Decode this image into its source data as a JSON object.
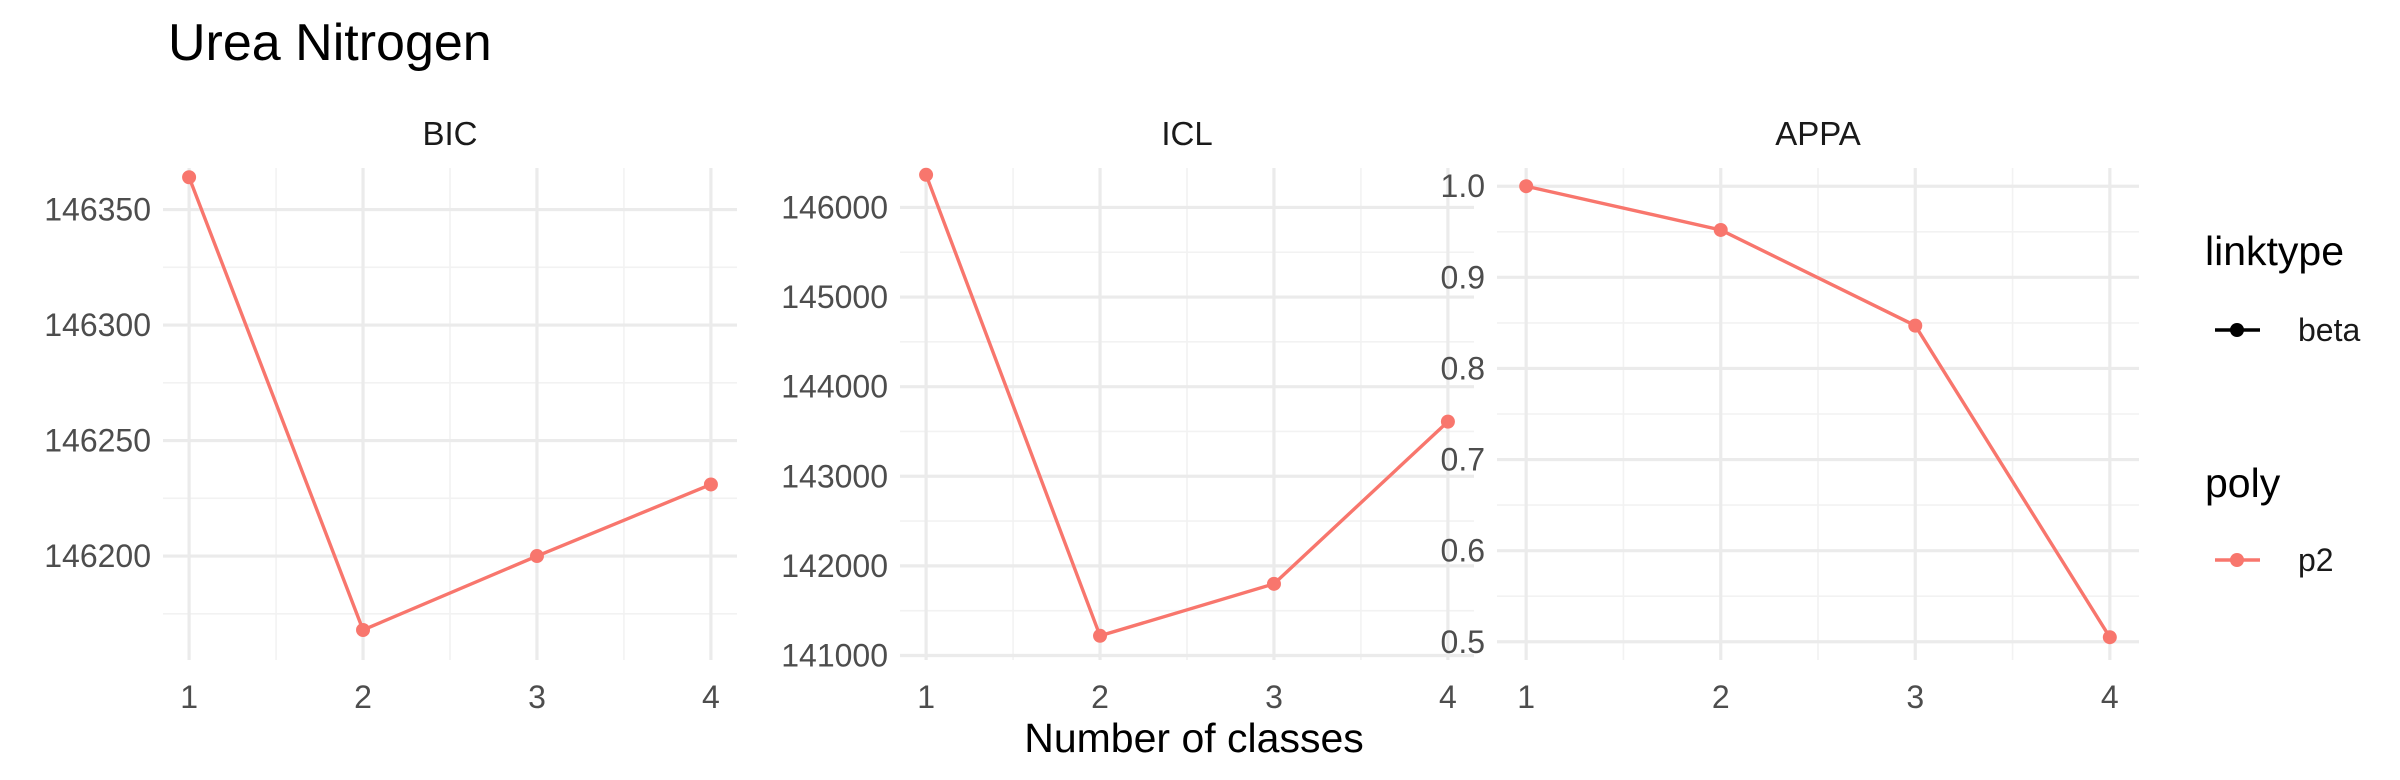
{
  "chart_data": {
    "type": "line",
    "title": "Urea Nitrogen",
    "xlabel": "Number of classes",
    "ylabel": "",
    "x": [
      1,
      2,
      3,
      4
    ],
    "xticks": [
      "1",
      "2",
      "3",
      "4"
    ],
    "grid": true,
    "legend_position": "right",
    "legends": [
      {
        "title": "linktype",
        "entries": [
          {
            "label": "beta",
            "color": "#000000"
          }
        ]
      },
      {
        "title": "poly",
        "entries": [
          {
            "label": "p2",
            "color": "#F8766D"
          }
        ]
      }
    ],
    "panels": [
      {
        "name": "BIC",
        "ylim": [
          146155,
          146368
        ],
        "yticks": [
          146200,
          146250,
          146300,
          146350
        ],
        "ytick_labels": [
          "146200",
          "146250",
          "146300",
          "146350"
        ],
        "series": [
          {
            "name": "p2",
            "color": "#F8766D",
            "values": [
              146364,
              146168,
              146200,
              146231
            ]
          }
        ]
      },
      {
        "name": "ICL",
        "ylim": [
          140950,
          146440
        ],
        "yticks": [
          141000,
          142000,
          143000,
          144000,
          145000,
          146000
        ],
        "ytick_labels": [
          "141000",
          "142000",
          "143000",
          "144000",
          "145000",
          "146000"
        ],
        "series": [
          {
            "name": "p2",
            "color": "#F8766D",
            "values": [
              146364,
              141220,
              141800,
              143610
            ]
          }
        ]
      },
      {
        "name": "APPA",
        "ylim": [
          0.48,
          1.02
        ],
        "yticks": [
          0.5,
          0.6,
          0.7,
          0.8,
          0.9,
          1.0
        ],
        "ytick_labels": [
          "0.5",
          "0.6",
          "0.7",
          "0.8",
          "0.9",
          "1.0"
        ],
        "series": [
          {
            "name": "p2",
            "color": "#F8766D",
            "values": [
              1.0,
              0.952,
              0.847,
              0.505
            ]
          }
        ]
      }
    ]
  }
}
